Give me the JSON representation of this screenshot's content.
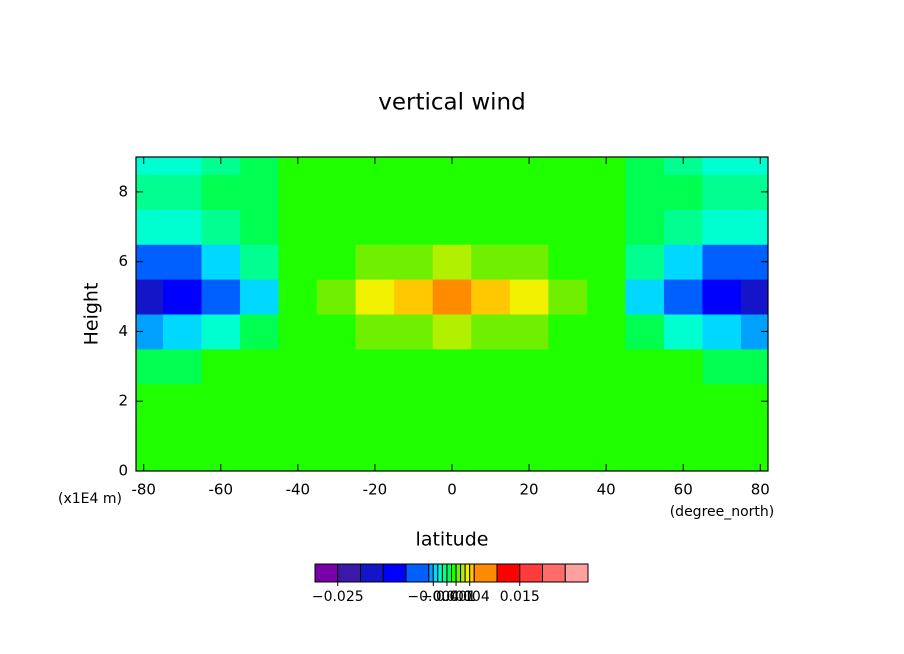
{
  "chart_data": {
    "type": "contour",
    "title": "vertical wind",
    "x_label": "latitude",
    "y_label": "Height",
    "x_unit": "(degree_north)",
    "y_unit": "(x1E4 m)",
    "x": [
      -80,
      -70,
      -60,
      -50,
      -40,
      -30,
      -20,
      -10,
      0,
      10,
      20,
      30,
      40,
      50,
      60,
      70,
      80
    ],
    "y": [
      0,
      1,
      2,
      3,
      4,
      5,
      6,
      7,
      8,
      9
    ],
    "z": [
      [
        0.0005,
        0.0005,
        0.0005,
        0.0005,
        0.0005,
        0.0005,
        0.0005,
        0.0005,
        0.0005,
        0.0005,
        0.0005,
        0.0005,
        0.0005,
        0.0005,
        0.0005,
        0.0005,
        0.0005
      ],
      [
        0.0005,
        0.0005,
        0.0005,
        0.0005,
        0.0005,
        0.0005,
        0.0005,
        0.0005,
        0.0005,
        0.0005,
        0.0005,
        0.0005,
        0.0005,
        0.0005,
        0.0005,
        0.0005,
        0.0005
      ],
      [
        0.0005,
        0.0005,
        0.0005,
        0.0005,
        0.0005,
        0.0005,
        0.0005,
        0.0005,
        0.0005,
        0.0005,
        0.0005,
        0.0005,
        0.0005,
        0.0005,
        0.0005,
        0.0005,
        0.0005
      ],
      [
        -0.0008,
        -0.0005,
        0.0005,
        0.0005,
        0.0005,
        0.0005,
        0.0005,
        0.0005,
        0.0005,
        0.0005,
        0.0005,
        0.0005,
        0.0005,
        0.0005,
        0.0005,
        -0.0005,
        -0.0008
      ],
      [
        -0.005,
        -0.004,
        -0.0025,
        -0.001,
        0.0005,
        0.0005,
        0.001,
        0.0015,
        0.002,
        0.0015,
        0.001,
        0.0005,
        0.0005,
        -0.001,
        -0.0025,
        -0.004,
        -0.005
      ],
      [
        -0.016,
        -0.014,
        -0.009,
        -0.004,
        0.0005,
        0.0015,
        0.003,
        0.0045,
        0.007,
        0.0045,
        0.003,
        0.0015,
        0.0005,
        -0.004,
        -0.009,
        -0.014,
        -0.016
      ],
      [
        -0.007,
        -0.006,
        -0.004,
        -0.002,
        0.0005,
        0.0005,
        0.001,
        0.0015,
        0.002,
        0.0015,
        0.001,
        0.0005,
        0.0005,
        -0.002,
        -0.004,
        -0.006,
        -0.007
      ],
      [
        -0.0025,
        -0.0025,
        -0.0015,
        -0.0005,
        0.0005,
        0.0005,
        0.0005,
        0.0005,
        0.0005,
        0.0005,
        0.0005,
        0.0005,
        0.0005,
        -0.0005,
        -0.0015,
        -0.0025,
        -0.0025
      ],
      [
        -0.002,
        -0.0015,
        -0.001,
        -0.0005,
        0.0002,
        0.0005,
        0.0005,
        0.0005,
        0.0005,
        0.0005,
        0.0005,
        0.0005,
        0.0002,
        -0.0005,
        -0.001,
        -0.0015,
        -0.002
      ],
      [
        -0.003,
        -0.0025,
        -0.0015,
        -0.001,
        0.0002,
        0.0005,
        0.0005,
        0.0005,
        0.0005,
        0.0005,
        0.0005,
        0.0005,
        0.0002,
        -0.001,
        -0.0015,
        -0.0025,
        -0.003
      ]
    ],
    "xlim": [
      -82,
      82
    ],
    "ylim": [
      0,
      9
    ],
    "xticks": [
      -80,
      -60,
      -40,
      -20,
      0,
      20,
      40,
      60,
      80
    ],
    "yticks": [
      0,
      2,
      4,
      6,
      8
    ],
    "levels": [
      -0.03,
      -0.025,
      -0.02,
      -0.015,
      -0.01,
      -0.005,
      -0.004,
      -0.003,
      -0.002,
      -0.001,
      0,
      0.001,
      0.002,
      0.003,
      0.004,
      0.005,
      0.01,
      0.015,
      0.02,
      0.025,
      0.03
    ],
    "colors": [
      "#7800a8",
      "#3a18a8",
      "#1414c8",
      "#0000ff",
      "#0060ff",
      "#00a0ff",
      "#00d8ff",
      "#00ffd0",
      "#00ff90",
      "#00ff50",
      "#20ff00",
      "#70f000",
      "#b0f000",
      "#f0f000",
      "#ffc800",
      "#ff8c00",
      "#ff0000",
      "#ff3c3c",
      "#ff6c6c",
      "#ffa0a0"
    ],
    "colorbar_ticks": [
      {
        "value": -0.025,
        "label": "−0.025"
      },
      {
        "value": -0.004,
        "label": "−0.004"
      },
      {
        "value": -0.001,
        "label": "−0.001"
      },
      0.001,
      0.004,
      0.015
    ]
  }
}
